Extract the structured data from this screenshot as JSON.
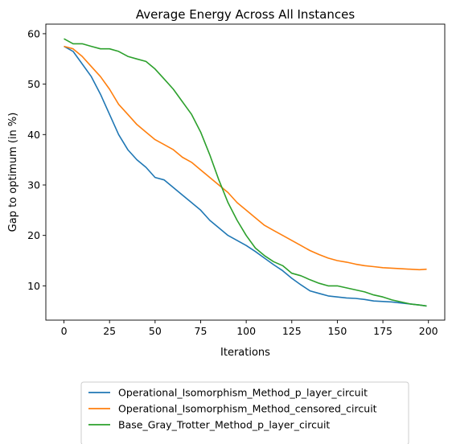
{
  "chart_data": {
    "type": "line",
    "title": "Average Energy Across All Instances",
    "xlabel": "Iterations",
    "ylabel": "Gap to optimum (in %)",
    "xlim": [
      -9.95,
      208.95
    ],
    "ylim": [
      3.2,
      61.9
    ],
    "xticks": [
      0,
      25,
      50,
      75,
      100,
      125,
      150,
      175,
      200
    ],
    "yticks": [
      10,
      20,
      30,
      40,
      50,
      60
    ],
    "grid": false,
    "legend_position": "below-center",
    "x": [
      0,
      5,
      10,
      15,
      20,
      25,
      30,
      35,
      40,
      45,
      50,
      55,
      60,
      65,
      70,
      75,
      80,
      85,
      90,
      95,
      100,
      105,
      110,
      115,
      120,
      125,
      130,
      135,
      140,
      145,
      150,
      155,
      160,
      165,
      170,
      175,
      180,
      185,
      190,
      195,
      199
    ],
    "series": [
      {
        "name": "Operational_Isomorphism_Method_p_layer_circuit",
        "color": "#1f77b4",
        "values": [
          57.5,
          56.5,
          54.0,
          51.5,
          48.0,
          44.0,
          40.0,
          37.0,
          35.0,
          33.5,
          31.5,
          31.0,
          29.5,
          28.0,
          26.5,
          25.0,
          23.0,
          21.5,
          20.0,
          19.0,
          18.0,
          16.8,
          15.5,
          14.2,
          13.0,
          11.5,
          10.2,
          9.0,
          8.5,
          8.0,
          7.8,
          7.6,
          7.5,
          7.3,
          7.0,
          6.9,
          6.8,
          6.6,
          6.4,
          6.2,
          6.0
        ]
      },
      {
        "name": "Operational_Isomorphism_Method_censored_circuit",
        "color": "#ff7f0e",
        "values": [
          57.5,
          57.0,
          55.5,
          53.5,
          51.5,
          49.0,
          46.0,
          44.0,
          42.0,
          40.5,
          39.0,
          38.0,
          37.0,
          35.5,
          34.5,
          33.0,
          31.5,
          30.0,
          28.5,
          26.5,
          25.0,
          23.5,
          22.0,
          21.0,
          20.0,
          19.0,
          18.0,
          17.0,
          16.2,
          15.5,
          15.0,
          14.7,
          14.3,
          14.0,
          13.8,
          13.6,
          13.5,
          13.4,
          13.3,
          13.2,
          13.3
        ]
      },
      {
        "name": "Base_Gray_Trotter_Method_p_layer_circuit",
        "color": "#2ca02c",
        "values": [
          59.0,
          58.0,
          58.0,
          57.5,
          57.0,
          57.0,
          56.5,
          55.5,
          55.0,
          54.5,
          53.0,
          51.0,
          49.0,
          46.5,
          44.0,
          40.5,
          36.0,
          31.0,
          26.5,
          23.0,
          20.0,
          17.5,
          16.0,
          14.8,
          14.0,
          12.5,
          12.0,
          11.2,
          10.5,
          10.0,
          10.0,
          9.6,
          9.2,
          8.8,
          8.2,
          7.8,
          7.2,
          6.8,
          6.4,
          6.2,
          6.0
        ]
      }
    ]
  }
}
